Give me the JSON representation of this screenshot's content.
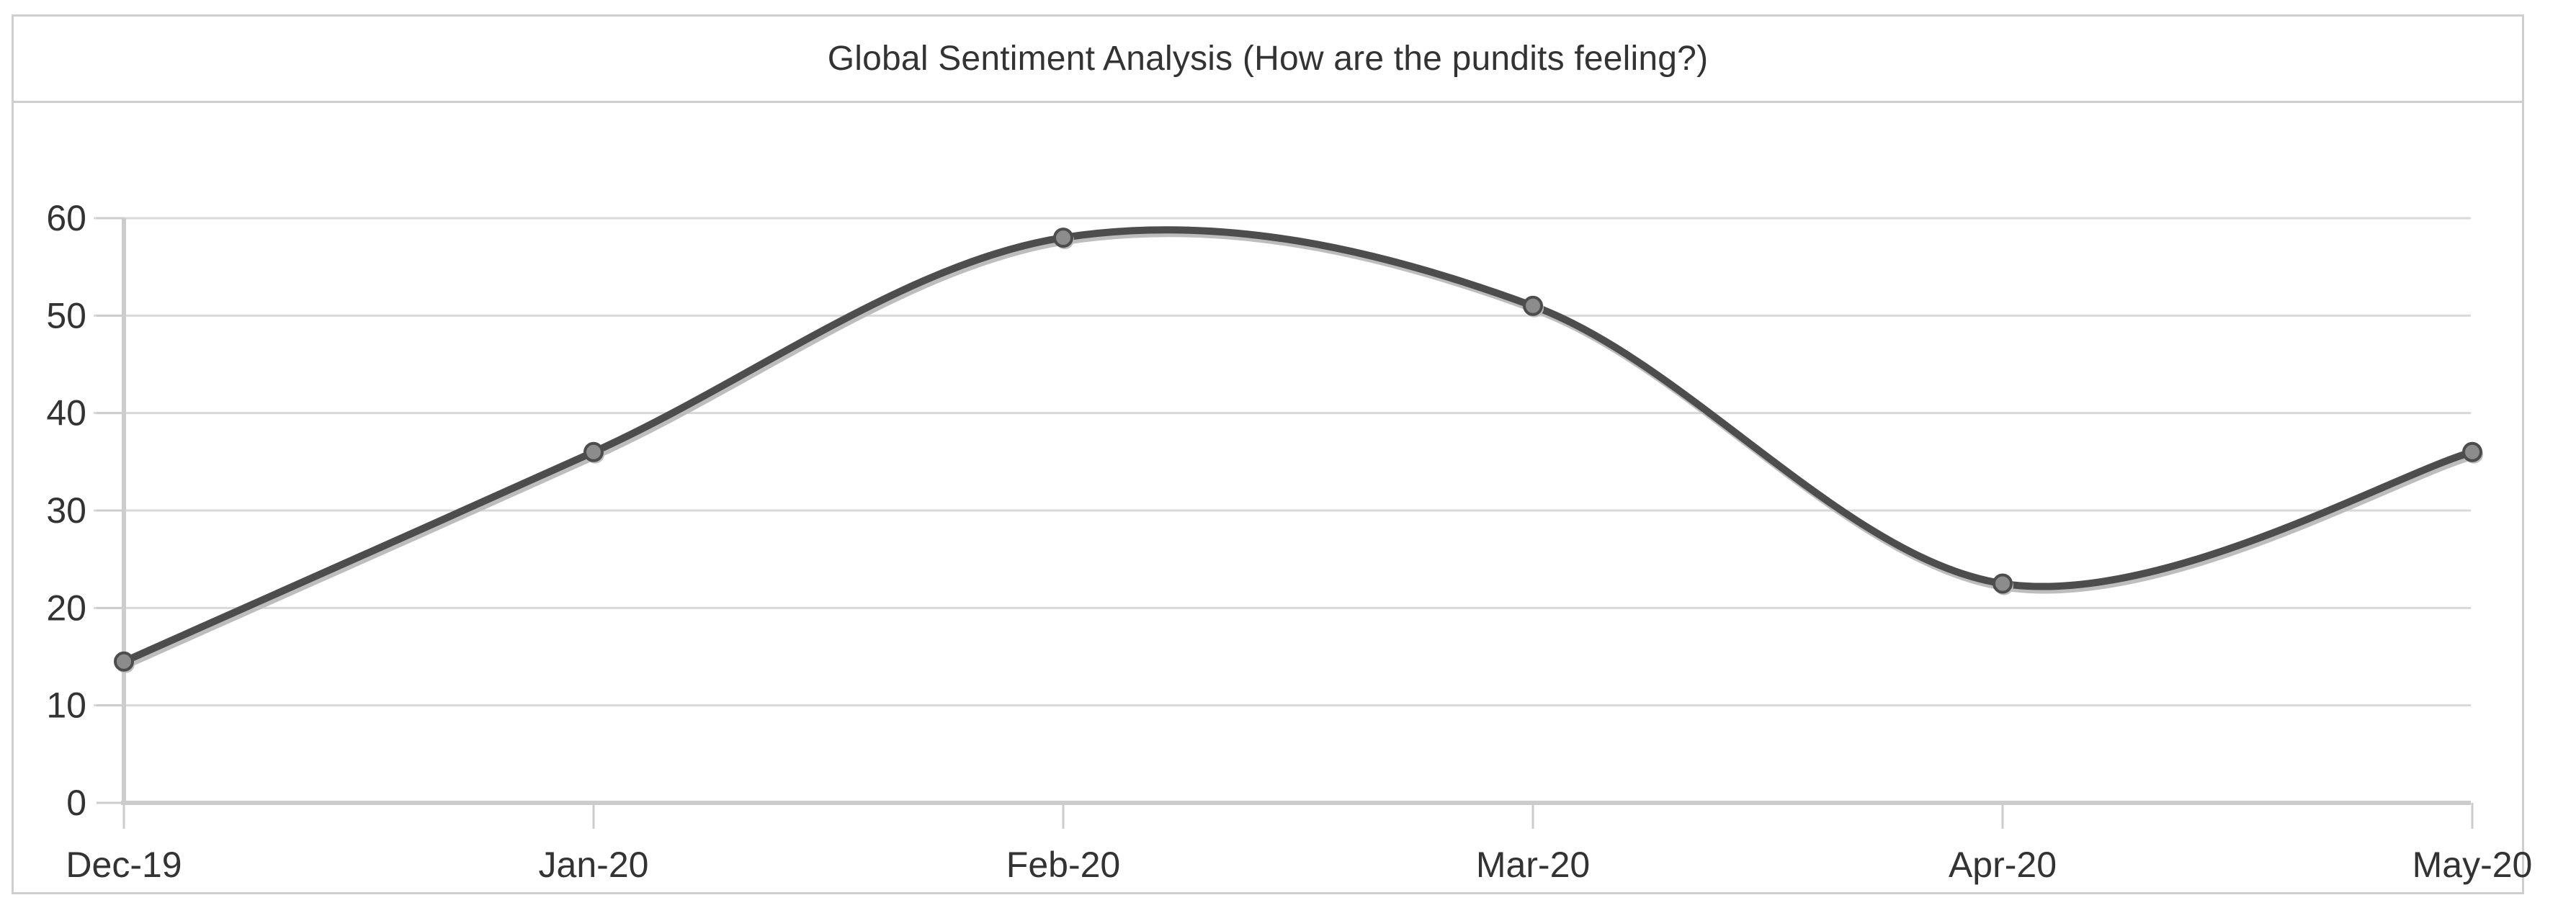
{
  "panel": {
    "title": "Global Sentiment Analysis (How are the pundits feeling?)"
  },
  "chart_data": {
    "type": "line",
    "title": "Global Sentiment Analysis (How are the pundits feeling?)",
    "xlabel": "",
    "ylabel": "",
    "categories": [
      "Dec-19",
      "Jan-20",
      "Feb-20",
      "Mar-20",
      "Apr-20",
      "May-20"
    ],
    "series": [
      {
        "values": [
          14.5,
          36,
          58,
          51,
          22.5,
          36
        ]
      }
    ],
    "ylim": [
      0,
      60
    ],
    "yticks": [
      0,
      10,
      20,
      30,
      40,
      50,
      60
    ],
    "grid": true,
    "smooth": true,
    "colors": {
      "line": "#4d4d4d",
      "line_shadow": "#bdbdbd",
      "marker_fill": "#8c8c8c",
      "marker_stroke": "#4d4d4d",
      "grid": "#d9d9d9",
      "axis": "#cccccc"
    }
  }
}
